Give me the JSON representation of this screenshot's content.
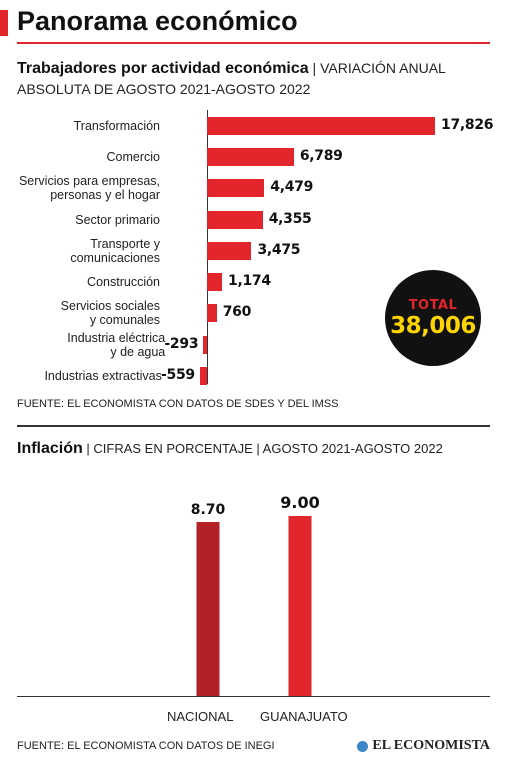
{
  "header": {
    "title": "Panorama económico"
  },
  "section1": {
    "title_strong": "Trabajadores por actividad económica",
    "title_rest": " | VARIACIÓN ANUAL ABSOLUTA DE AGOSTO 2021-AGOSTO 2022",
    "source": "FUENTE: EL ECONOMISTA CON DATOS DE SDES Y DEL IMSS",
    "total_label": "TOTAL",
    "total_value": "38,006"
  },
  "section2": {
    "title_strong": "Inflación",
    "title_rest": " | CIFRAS EN PORCENTAJE | AGOSTO 2021-AGOSTO 2022",
    "source": "FUENTE: EL ECONOMISTA CON DATOS DE INEGI"
  },
  "brand": {
    "name": "EL ECONOMISTA",
    "icon": "el-economista-logo-icon"
  },
  "colors": {
    "accent": "#e2262b",
    "dark_red": "#b32025",
    "total_bg": "#111111",
    "total_value": "#ffd400"
  },
  "chart_data": [
    {
      "type": "bar",
      "orientation": "horizontal",
      "categories": [
        "Transformación",
        "Comercio",
        "Servicios para empresas,\npersonas y el hogar",
        "Sector primario",
        "Transporte y\ncomunicaciones",
        "Construcción",
        "Servicios sociales\ny comunales",
        "Industria eléctrica\ny de agua",
        "Industrias extractivas"
      ],
      "values": [
        17826,
        6789,
        4479,
        4355,
        3475,
        1174,
        760,
        -293,
        -559
      ],
      "value_labels": [
        "17,826",
        "6,789",
        "4,479",
        "4,355",
        "3,475",
        "1,174",
        "760",
        "-293",
        "-559"
      ],
      "title": "Trabajadores por actividad económica",
      "xlabel": "",
      "ylabel": ""
    },
    {
      "type": "bar",
      "categories": [
        "NACIONAL",
        "GUANAJUATO"
      ],
      "values": [
        8.7,
        9.0
      ],
      "value_labels": [
        "8.70",
        "9.00"
      ],
      "title": "Inflación",
      "xlabel": "",
      "ylabel": ""
    }
  ]
}
